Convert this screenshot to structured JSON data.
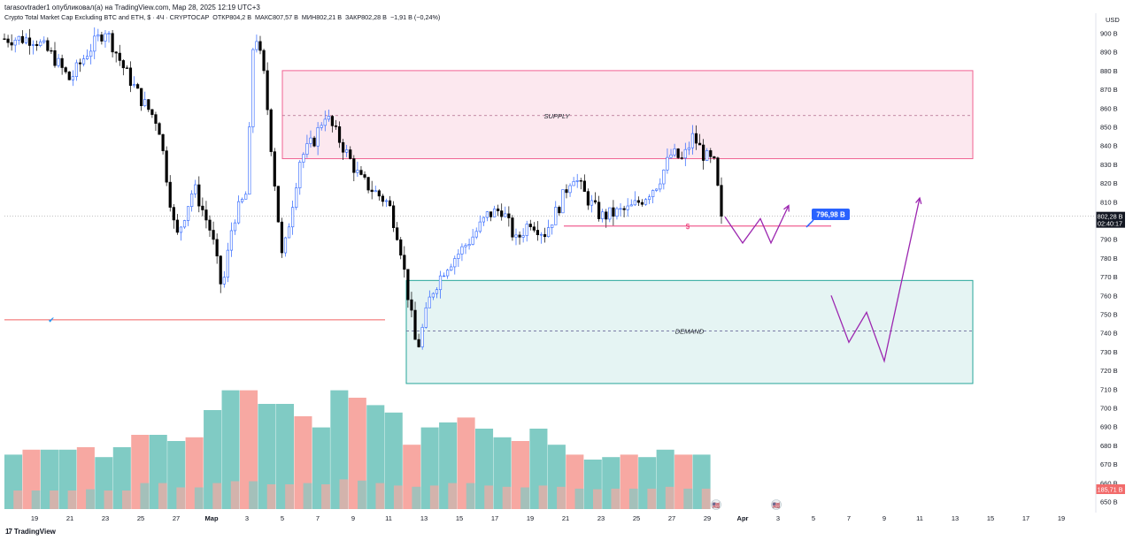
{
  "header": {
    "published_by": "tarasovtrader1 опубликовал(а) на TradingView.com, Мар 28, 2025 12:19 UTC+3",
    "symbol_line": "Crypto Total Market Cap Excluding BTC and ETH, $ · 4Ч · CRYPTOCAP",
    "ohlc": {
      "open_label": "ОТКР",
      "open": "804,2 B",
      "high_label": "МАКС",
      "high": "807,57 B",
      "low_label": "МИН",
      "low": "802,21 B",
      "close_label": "ЗАКР",
      "close": "802,28 B",
      "change": "−1,91 B (−0,24%)"
    }
  },
  "footer": {
    "brand": "TradingView",
    "logo_glyph": "17"
  },
  "colors": {
    "up": "#26a69a",
    "down": "#000000",
    "wick_up": "#2962ff",
    "supply_fill": "#fce4ec",
    "supply_border": "#f06292",
    "demand_fill": "#e0f2f1",
    "demand_border": "#26a69a",
    "vol_up": "#80cbc4",
    "vol_down": "#f7a8a2",
    "path": "#9c27b0",
    "target_badge": "#2962ff",
    "price_badge": "#131722",
    "vol_badge": "#f26b6b",
    "red_line": "#f06060"
  },
  "chart_data": {
    "type": "candlestick",
    "currency": "USD",
    "timeframe": "4Ч",
    "y_axis": {
      "label": "USD",
      "range": [
        645,
        910
      ],
      "ticks": [
        "900 B",
        "890 B",
        "880 B",
        "870 B",
        "860 B",
        "850 B",
        "840 B",
        "830 B",
        "820 B",
        "810 B",
        "800 B",
        "790 B",
        "780 B",
        "770 B",
        "760 B",
        "750 B",
        "740 B",
        "730 B",
        "720 B",
        "710 B",
        "700 B",
        "690 B",
        "680 B",
        "670 B",
        "660 B",
        "650 B"
      ],
      "tick_values": [
        900,
        890,
        880,
        870,
        860,
        850,
        840,
        830,
        820,
        810,
        800,
        790,
        780,
        770,
        760,
        750,
        740,
        730,
        720,
        710,
        700,
        690,
        680,
        670,
        660,
        650
      ]
    },
    "x_axis": {
      "tick_labels": [
        "19",
        "21",
        "23",
        "25",
        "27",
        "Мар",
        "3",
        "5",
        "7",
        "9",
        "11",
        "13",
        "15",
        "17",
        "19",
        "21",
        "23",
        "25",
        "27",
        "29",
        "Apr",
        "3",
        "5",
        "7",
        "9",
        "11",
        "13",
        "15",
        "17",
        "19"
      ],
      "tick_index": [
        0,
        1,
        2,
        3,
        4,
        5,
        6,
        7,
        8,
        9,
        10,
        11,
        12,
        13,
        14,
        15,
        16,
        17,
        18,
        19,
        20,
        21,
        22,
        23,
        24,
        25,
        26,
        27,
        28,
        29
      ]
    },
    "close_anchors": [
      [
        0,
        897
      ],
      [
        0.5,
        888
      ],
      [
        1.0,
        875
      ],
      [
        1.5,
        890
      ],
      [
        2.0,
        902
      ],
      [
        2.5,
        882
      ],
      [
        3.0,
        865
      ],
      [
        3.5,
        852
      ],
      [
        4.0,
        790
      ],
      [
        4.5,
        818
      ],
      [
        5.0,
        793
      ],
      [
        5.3,
        762
      ],
      [
        5.6,
        800
      ],
      [
        6.0,
        815
      ],
      [
        6.2,
        905
      ],
      [
        6.5,
        875
      ],
      [
        7.0,
        778
      ],
      [
        7.5,
        833
      ],
      [
        7.9,
        843
      ],
      [
        8.2,
        857
      ],
      [
        8.7,
        840
      ],
      [
        9.2,
        822
      ],
      [
        10.0,
        809
      ],
      [
        10.3,
        790
      ],
      [
        10.8,
        730
      ],
      [
        11.2,
        761
      ],
      [
        11.6,
        775
      ],
      [
        12.0,
        783
      ],
      [
        12.4,
        792
      ],
      [
        12.8,
        803
      ],
      [
        13.2,
        806
      ],
      [
        13.6,
        789
      ],
      [
        14.0,
        800
      ],
      [
        14.4,
        793
      ],
      [
        14.8,
        807
      ],
      [
        15.2,
        825
      ],
      [
        15.6,
        812
      ],
      [
        16.0,
        802
      ],
      [
        16.4,
        804
      ],
      [
        16.8,
        806
      ],
      [
        17.2,
        812
      ],
      [
        17.6,
        820
      ],
      [
        18.0,
        836
      ],
      [
        18.3,
        832
      ],
      [
        18.6,
        845
      ],
      [
        18.9,
        835
      ],
      [
        19.2,
        830
      ],
      [
        19.4,
        802.28
      ]
    ],
    "volume": {
      "range": [
        0,
        100
      ],
      "bar_count": 39,
      "series": [
        {
          "name": "",
          "values": [
            44,
            48,
            48,
            48,
            50,
            42,
            50,
            60,
            60,
            55,
            58,
            80,
            96,
            96,
            85,
            85,
            75,
            66,
            96,
            90,
            84,
            78,
            52,
            66,
            70,
            74,
            65,
            58,
            55,
            65,
            52,
            44,
            40,
            42,
            44,
            42,
            48,
            44,
            44
          ]
        },
        {
          "name": "",
          "values": [
            30,
            30,
            30,
            30,
            32,
            30,
            30,
            42,
            42,
            35,
            35,
            42,
            45,
            45,
            40,
            40,
            42,
            40,
            48,
            46,
            42,
            38,
            36,
            38,
            42,
            42,
            38,
            36,
            35,
            38,
            36,
            33,
            32,
            33,
            33,
            33,
            36,
            33,
            33
          ]
        }
      ]
    },
    "levels": {
      "last_price": 802.28,
      "last_price_label": "802,28 B",
      "countdown": "02:40:17",
      "volume_label": "185,71 B",
      "dotted_price": 802.28
    },
    "zones": [
      {
        "name": "supply",
        "label": "SUPPLY",
        "from_x": 7.0,
        "to_x": 26.5,
        "top": 880,
        "bottom": 833,
        "mid": 856
      },
      {
        "name": "demand",
        "label": "DEMAND",
        "from_x": 10.5,
        "to_x": 26.5,
        "top": 768,
        "bottom": 713,
        "mid": 741
      }
    ],
    "annotations": [
      {
        "name": "stop-line",
        "label": "$",
        "from_x": 15.2,
        "to_x": 21.5,
        "y": 797
      },
      {
        "name": "old-support",
        "from_x": 0,
        "to_x": 9.9,
        "y": 747,
        "mark": "✔"
      },
      {
        "name": "target-badge",
        "label": "796,98 B",
        "x": 22.6,
        "y": 802
      },
      {
        "name": "calendar-icon-29",
        "x": 19.5,
        "glyph": "🇺🇸"
      },
      {
        "name": "calendar-icon-apr",
        "x": 21.2,
        "glyph": "🇺🇸"
      }
    ],
    "projection_a": [
      [
        19.5,
        802
      ],
      [
        20.0,
        788
      ],
      [
        20.5,
        801
      ],
      [
        20.8,
        788
      ],
      [
        21.3,
        808
      ]
    ],
    "projection_b": [
      [
        22.5,
        760
      ],
      [
        23.0,
        735
      ],
      [
        23.5,
        751
      ],
      [
        24.0,
        725
      ],
      [
        25.0,
        812
      ]
    ]
  }
}
